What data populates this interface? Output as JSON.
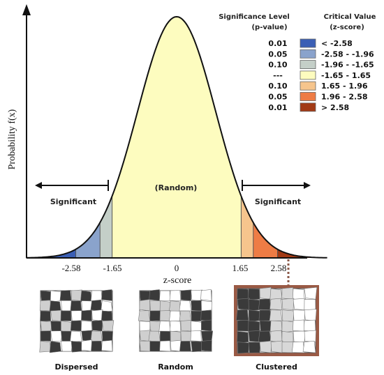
{
  "diagram": {
    "y_axis_label": "Probability f(x)",
    "x_axis_label": "z-score",
    "x_ticks": [
      "-2.58",
      "-1.65",
      "0",
      "1.65",
      "2.58"
    ],
    "region_labels": {
      "left": "Significant",
      "center": "(Random)",
      "right": "Significant"
    },
    "legend": {
      "header_significance": "Significance Level",
      "header_significance_sub": "(p-value)",
      "header_critical": "Critical Value",
      "header_critical_sub": "(z-score)",
      "rows": [
        {
          "p": "0.01",
          "z": "< -2.58",
          "color": "#3b5fb5"
        },
        {
          "p": "0.05",
          "z": "-2.58 - -1.96",
          "color": "#8aa3cc"
        },
        {
          "p": "0.10",
          "z": "-1.96 - -1.65",
          "color": "#c4cfc8"
        },
        {
          "p": "---",
          "z": "-1.65 - 1.65",
          "color": "#fdfcbf"
        },
        {
          "p": "0.10",
          "z": "1.65 - 1.96",
          "color": "#f6c58d"
        },
        {
          "p": "0.05",
          "z": "1.96 - 2.58",
          "color": "#ee7c45"
        },
        {
          "p": "0.01",
          "z": "> 2.58",
          "color": "#a23a15"
        }
      ]
    },
    "maps": [
      {
        "caption": "Dispersed"
      },
      {
        "caption": "Random"
      },
      {
        "caption": "Clustered"
      }
    ]
  }
}
